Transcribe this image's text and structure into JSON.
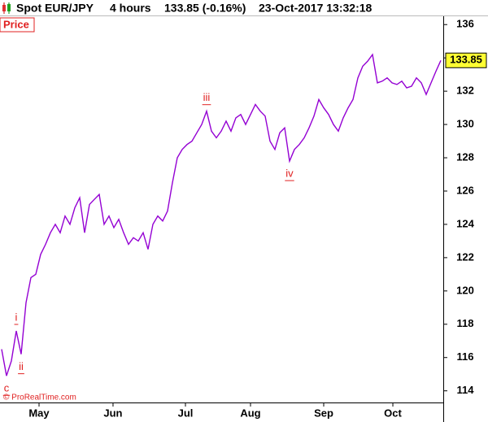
{
  "chart_data": {
    "type": "line",
    "header": {
      "symbol": "Spot EUR/JPY",
      "period": "4 hours",
      "quote": "133.85 (-0.16%)",
      "timestamp": "23-Oct-2017 13:32:18"
    },
    "panel_label": "Price",
    "credit": "© ProRealTime.com",
    "color": "#9400d3",
    "values": [
      116.5,
      114.9,
      115.8,
      117.6,
      116.2,
      119.3,
      120.8,
      121.0,
      122.2,
      122.8,
      123.5,
      124.0,
      123.5,
      124.5,
      124.0,
      125.0,
      125.6,
      123.5,
      125.2,
      125.5,
      125.8,
      124.0,
      124.5,
      123.8,
      124.3,
      123.5,
      122.8,
      123.2,
      123.0,
      123.5,
      122.5,
      124.0,
      124.5,
      124.2,
      124.8,
      126.5,
      128.0,
      128.5,
      128.8,
      129.0,
      129.5,
      130.0,
      130.8,
      129.6,
      129.2,
      129.6,
      130.2,
      129.6,
      130.4,
      130.6,
      130.0,
      130.6,
      131.2,
      130.8,
      130.5,
      129.0,
      128.5,
      129.5,
      129.8,
      127.8,
      128.5,
      128.8,
      129.2,
      129.8,
      130.5,
      131.5,
      131.0,
      130.6,
      130.0,
      129.6,
      130.4,
      131.0,
      131.5,
      132.8,
      133.5,
      133.8,
      134.2,
      132.5,
      132.6,
      132.8,
      132.5,
      132.4,
      132.6,
      132.2,
      132.3,
      132.8,
      132.5,
      131.8,
      132.5,
      133.2,
      133.85
    ],
    "xlim": [
      -0.33,
      90.5
    ],
    "xticks": [
      {
        "value": 7.67,
        "label": "May"
      },
      {
        "value": 22.83,
        "label": "Jun"
      },
      {
        "value": 37.67,
        "label": "Jul"
      },
      {
        "value": 51,
        "label": "Aug"
      },
      {
        "value": 66,
        "label": "Sep"
      },
      {
        "value": 80.17,
        "label": "Oct"
      }
    ],
    "ylim": [
      113.3,
      136.5
    ],
    "yticks": [
      114,
      116,
      118,
      120,
      122,
      124,
      126,
      128,
      130,
      132,
      134,
      136
    ],
    "annotations": [
      {
        "text": "c",
        "x": 1,
        "side": "below"
      },
      {
        "text": "i",
        "x": 3,
        "side": "above"
      },
      {
        "text": "ii",
        "x": 4,
        "side": "below"
      },
      {
        "text": "iii",
        "x": 42,
        "side": "above"
      },
      {
        "text": "iv",
        "x": 59,
        "side": "below"
      }
    ]
  }
}
